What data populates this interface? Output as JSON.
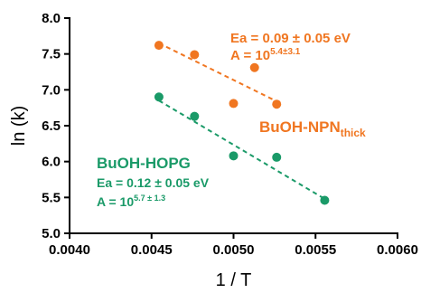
{
  "chart_data": {
    "type": "scatter",
    "title": "",
    "xlabel": "1 / T",
    "ylabel": "ln (k)",
    "xlim": [
      0.004,
      0.006
    ],
    "ylim": [
      5.0,
      8.0
    ],
    "xticks": [
      "0.0040",
      "0.0045",
      "0.0050",
      "0.0055",
      "0.0060"
    ],
    "xtick_values": [
      0.004,
      0.0045,
      0.005,
      0.0055,
      0.006
    ],
    "yticks": [
      "5.0",
      "5.5",
      "6.0",
      "6.5",
      "7.0",
      "7.5",
      "8.0"
    ],
    "ytick_values": [
      5.0,
      5.5,
      6.0,
      6.5,
      7.0,
      7.5,
      8.0
    ],
    "grid": false,
    "series": [
      {
        "name": "BuOH-NPN",
        "name_subscript": "thick",
        "color": "#f07621",
        "x": [
          0.004545,
          0.004762,
          0.005,
          0.005128,
          0.005263
        ],
        "y": [
          7.62,
          7.49,
          6.81,
          7.31,
          6.8
        ],
        "fit": {
          "x": [
            0.004545,
            0.005263
          ],
          "y": [
            7.65,
            6.84
          ]
        },
        "annotation": {
          "ea": "Ea = 0.09 ± 0.05 eV",
          "a_base": "A = 10",
          "a_exp": "5.4±3.1"
        }
      },
      {
        "name": "BuOH-HOPG",
        "color": "#1a9a68",
        "x": [
          0.004545,
          0.004762,
          0.005,
          0.005263,
          0.005556
        ],
        "y": [
          6.9,
          6.63,
          6.08,
          6.06,
          5.46
        ],
        "fit": {
          "x": [
            0.004545,
            0.005556
          ],
          "y": [
            6.85,
            5.48
          ]
        },
        "annotation": {
          "ea": "Ea = 0.12 ± 0.05 eV",
          "a_base": "A = 10",
          "a_exp": "5.7 ± 1.3"
        }
      }
    ]
  }
}
